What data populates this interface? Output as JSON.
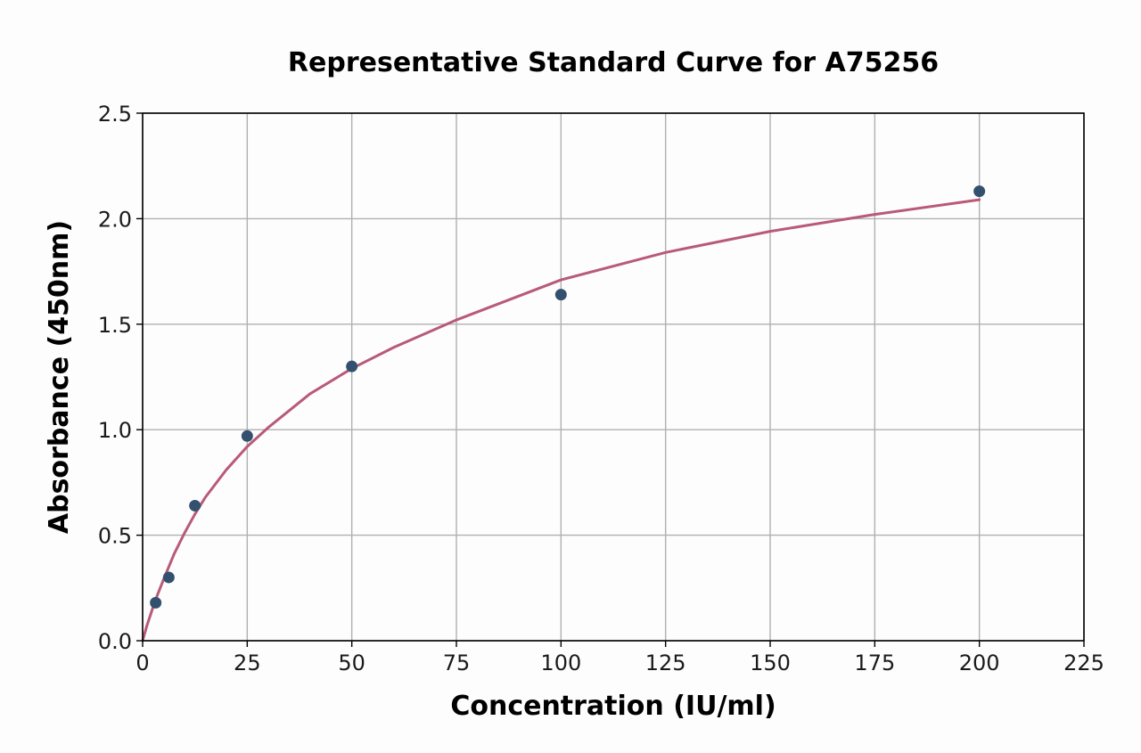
{
  "chart_data": {
    "type": "scatter",
    "title": "Representative Standard Curve for A75256",
    "xlabel": "Concentration (IU/ml)",
    "ylabel": "Absorbance (450nm)",
    "xlim": [
      0,
      225
    ],
    "ylim": [
      0,
      2.5
    ],
    "x_ticks": [
      "0",
      "25",
      "50",
      "75",
      "100",
      "125",
      "150",
      "175",
      "200",
      "225"
    ],
    "y_ticks": [
      "0.0",
      "0.5",
      "1.0",
      "1.5",
      "2.0",
      "2.5"
    ],
    "grid": true,
    "series": [
      {
        "kind": "points",
        "x": [
          3.125,
          6.25,
          12.5,
          25,
          50,
          100,
          200
        ],
        "y": [
          0.18,
          0.3,
          0.64,
          0.97,
          1.3,
          1.64,
          2.13
        ]
      },
      {
        "kind": "fitted-curve",
        "x": [
          0,
          1,
          2,
          3,
          5,
          7.5,
          10,
          12.5,
          15,
          20,
          25,
          30,
          40,
          50,
          60,
          75,
          100,
          125,
          150,
          175,
          200
        ],
        "y": [
          0.0,
          0.07,
          0.13,
          0.19,
          0.29,
          0.41,
          0.51,
          0.6,
          0.68,
          0.81,
          0.92,
          1.01,
          1.17,
          1.29,
          1.39,
          1.52,
          1.71,
          1.84,
          1.94,
          2.02,
          2.09
        ]
      }
    ],
    "colors": {
      "points": "#34506f",
      "curve": "#b85a78",
      "grid": "#b0b0b0",
      "axes": "#000000"
    }
  }
}
